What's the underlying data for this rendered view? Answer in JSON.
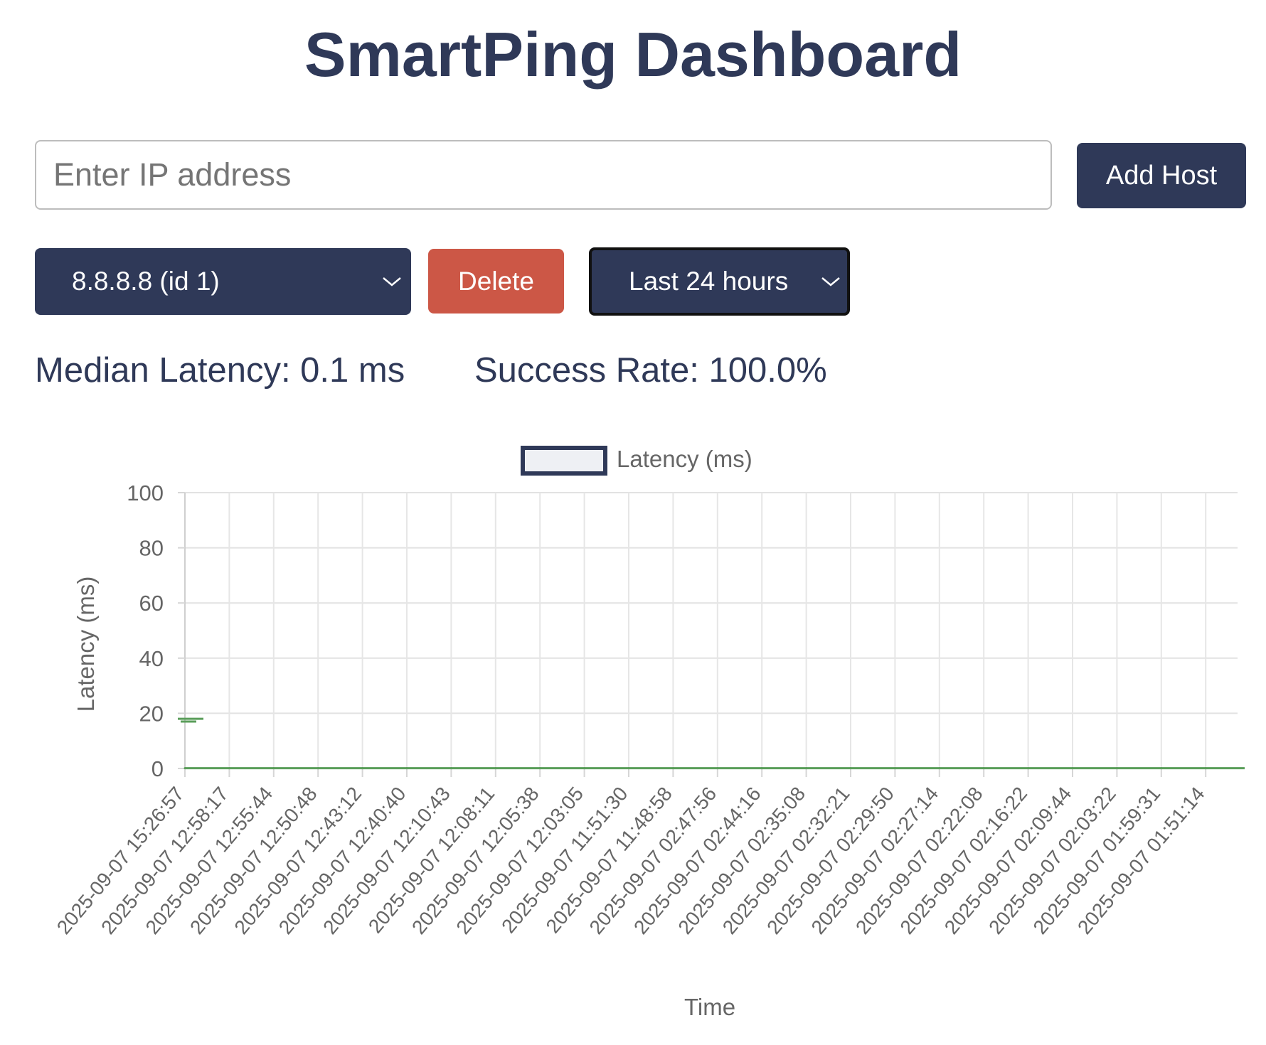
{
  "header": {
    "title": "SmartPing Dashboard"
  },
  "add_host": {
    "placeholder": "Enter IP address",
    "value": "",
    "button_label": "Add Host"
  },
  "host_select": {
    "selected": "8.8.8.8 (id 1)"
  },
  "delete_button": {
    "label": "Delete"
  },
  "range_select": {
    "selected": "Last 24 hours"
  },
  "stats": {
    "median_latency": "Median Latency: 0.1 ms",
    "success_rate": "Success Rate: 100.0%"
  },
  "colors": {
    "primary": "#2f3958",
    "danger": "#cc5746",
    "series_line": "#5a9e5a",
    "legend_fill": "#eef0f4"
  },
  "chart_data": {
    "type": "line",
    "title": "",
    "legend": {
      "entries": [
        "Latency (ms)"
      ],
      "placement": "top-center"
    },
    "xlabel": "Time",
    "ylabel": "Latency (ms)",
    "ylim": [
      0,
      100
    ],
    "yticks": [
      0,
      20,
      40,
      60,
      80,
      100
    ],
    "grid": true,
    "x_tick_labels": [
      "2025-09-07 15:26:57",
      "2025-09-07 12:58:17",
      "2025-09-07 12:55:44",
      "2025-09-07 12:50:48",
      "2025-09-07 12:43:12",
      "2025-09-07 12:40:40",
      "2025-09-07 12:10:43",
      "2025-09-07 12:08:11",
      "2025-09-07 12:05:38",
      "2025-09-07 12:03:05",
      "2025-09-07 11:51:30",
      "2025-09-07 11:48:58",
      "2025-09-07 02:47:56",
      "2025-09-07 02:44:16",
      "2025-09-07 02:35:08",
      "2025-09-07 02:32:21",
      "2025-09-07 02:29:50",
      "2025-09-07 02:27:14",
      "2025-09-07 02:22:08",
      "2025-09-07 02:16:22",
      "2025-09-07 02:09:44",
      "2025-09-07 02:03:22",
      "2025-09-07 01:59:31",
      "2025-09-07 01:51:14"
    ],
    "series": [
      {
        "name": "Latency (ms)",
        "color": "#5a9e5a",
        "values": [
          0.1,
          0.1,
          0.1,
          0.1,
          0.1,
          0.1,
          0.1,
          0.1,
          0.1,
          0.1,
          0.1,
          0.1,
          0.1,
          0.1,
          0.1,
          0.1,
          0.1,
          0.1,
          0.1,
          0.1,
          0.1,
          0.1,
          0.1,
          0.1
        ],
        "spike_values": [
          18,
          17
        ]
      }
    ]
  }
}
